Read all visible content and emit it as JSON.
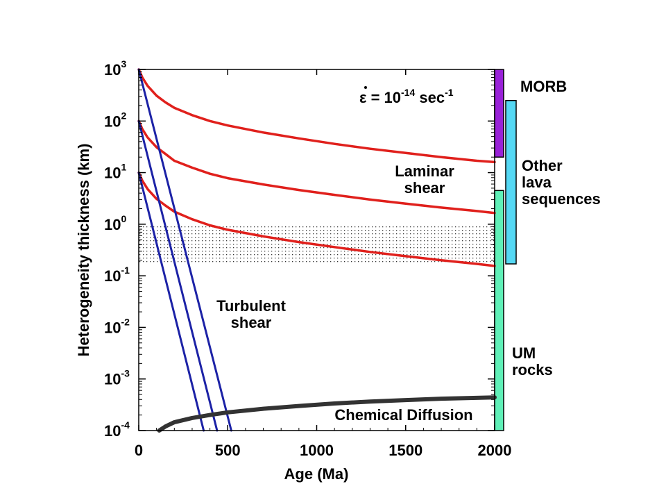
{
  "chart_data": {
    "type": "line",
    "title": "",
    "xlabel": "Age (Ma)",
    "ylabel": "Heterogeneity thickness (km)",
    "xlim": [
      0,
      2000
    ],
    "ylim": [
      0.0001,
      1000
    ],
    "yscale": "log",
    "x_ticks": [
      0,
      500,
      1000,
      1500,
      2000
    ],
    "x_tick_labels": [
      "0",
      "500",
      "1000",
      "1500",
      "2000"
    ],
    "y_tick_base": "10",
    "y_ticks": [
      {
        "value": 1000,
        "exp": "3"
      },
      {
        "value": 100,
        "exp": "2"
      },
      {
        "value": 10,
        "exp": "1"
      },
      {
        "value": 1,
        "exp": "0"
      },
      {
        "value": 0.1,
        "exp": "-1"
      },
      {
        "value": 0.01,
        "exp": "-2"
      },
      {
        "value": 0.001,
        "exp": "-3"
      },
      {
        "value": 0.0001,
        "exp": "-4"
      }
    ],
    "strain_rate": {
      "symbol": "ε",
      "middle": " = 10",
      "exp": "-14",
      "unit": " sec",
      "unit_exp": "-1"
    },
    "annotations": {
      "laminar": [
        "Laminar",
        "shear"
      ],
      "turbulent": [
        "Turbulent",
        "shear"
      ],
      "diffusion": "Chemical Diffusion"
    },
    "band": {
      "y_range": [
        0.17,
        1.0
      ],
      "color": "#555555"
    },
    "colors": {
      "laminar": "#e0201c",
      "turbulent": "#1c22a6",
      "diffusion": "#333333"
    },
    "series": [
      {
        "group": "laminar",
        "points": [
          [
            0,
            1000
          ],
          [
            20,
            700
          ],
          [
            50,
            480
          ],
          [
            100,
            310
          ],
          [
            150,
            230
          ],
          [
            200,
            180
          ],
          [
            300,
            130
          ],
          [
            400,
            100
          ],
          [
            500,
            82
          ],
          [
            700,
            60
          ],
          [
            900,
            46
          ],
          [
            1100,
            36
          ],
          [
            1300,
            29
          ],
          [
            1500,
            24
          ],
          [
            1700,
            20
          ],
          [
            1900,
            17
          ],
          [
            2000,
            16
          ]
        ]
      },
      {
        "group": "laminar",
        "points": [
          [
            0,
            100
          ],
          [
            20,
            70
          ],
          [
            50,
            48
          ],
          [
            100,
            31
          ],
          [
            150,
            23
          ],
          [
            200,
            17
          ],
          [
            300,
            12.5
          ],
          [
            400,
            9.5
          ],
          [
            500,
            7.8
          ],
          [
            700,
            5.9
          ],
          [
            900,
            4.6
          ],
          [
            1100,
            3.7
          ],
          [
            1300,
            3.0
          ],
          [
            1500,
            2.5
          ],
          [
            1700,
            2.1
          ],
          [
            1900,
            1.8
          ],
          [
            2000,
            1.65
          ]
        ]
      },
      {
        "group": "laminar",
        "points": [
          [
            0,
            10
          ],
          [
            20,
            7
          ],
          [
            50,
            4.8
          ],
          [
            100,
            3.1
          ],
          [
            150,
            2.3
          ],
          [
            200,
            1.75
          ],
          [
            300,
            1.25
          ],
          [
            400,
            0.95
          ],
          [
            500,
            0.78
          ],
          [
            700,
            0.58
          ],
          [
            900,
            0.45
          ],
          [
            1100,
            0.36
          ],
          [
            1300,
            0.29
          ],
          [
            1500,
            0.24
          ],
          [
            1700,
            0.2
          ],
          [
            1900,
            0.17
          ],
          [
            2000,
            0.155
          ]
        ]
      },
      {
        "group": "turbulent",
        "points": [
          [
            0,
            1000
          ],
          [
            520,
            0.0001
          ]
        ]
      },
      {
        "group": "turbulent",
        "points": [
          [
            0,
            100
          ],
          [
            440,
            0.0001
          ]
        ]
      },
      {
        "group": "turbulent",
        "points": [
          [
            0,
            10
          ],
          [
            365,
            0.0001
          ]
        ]
      },
      {
        "group": "diffusion",
        "points": [
          [
            115,
            0.0001
          ],
          [
            150,
            0.00012
          ],
          [
            200,
            0.000145
          ],
          [
            300,
            0.000175
          ],
          [
            400,
            0.0002
          ],
          [
            500,
            0.000225
          ],
          [
            700,
            0.000265
          ],
          [
            900,
            0.0003
          ],
          [
            1100,
            0.000335
          ],
          [
            1300,
            0.000365
          ],
          [
            1500,
            0.00039
          ],
          [
            1700,
            0.000415
          ],
          [
            2000,
            0.00044
          ]
        ]
      }
    ],
    "range_bars": [
      {
        "label": [
          "MORB"
        ],
        "y_range": [
          20,
          1000
        ],
        "color": "#9922d8"
      },
      {
        "label": [
          "Other",
          "lava",
          "sequences"
        ],
        "y_range": [
          0.17,
          250
        ],
        "color": "#55d8f4"
      },
      {
        "label": [
          "UM",
          "rocks"
        ],
        "y_range": [
          0.0001,
          4.5
        ],
        "color": "#60f0b8"
      }
    ]
  }
}
